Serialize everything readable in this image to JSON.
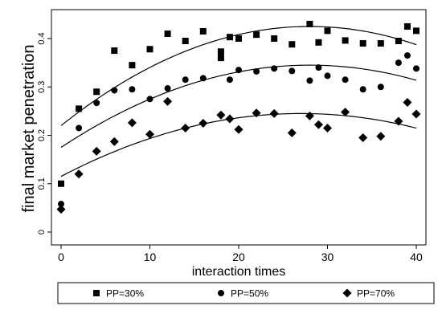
{
  "chart_data": {
    "type": "scatter",
    "xlabel": "interaction times",
    "ylabel": "final market penetration",
    "xlim": [
      0,
      40
    ],
    "ylim": [
      0,
      0.45
    ],
    "xticks": [
      0,
      10,
      20,
      30,
      40
    ],
    "yticks": [
      0,
      0.1,
      0.2,
      0.3,
      0.4
    ],
    "xtick_labels": [
      "0",
      "10",
      "20",
      "30",
      "40"
    ],
    "ytick_labels": [
      "0",
      "0.1",
      "0.2",
      "0.3",
      "0.4"
    ],
    "grid": false,
    "legend_position": "bottom",
    "series": [
      {
        "name": "PP=30%",
        "marker": "square",
        "x": [
          0,
          2,
          4,
          6,
          8,
          10,
          12,
          14,
          16,
          18,
          18,
          19,
          20,
          22,
          24,
          26,
          28,
          29,
          30,
          32,
          34,
          36,
          38,
          39,
          40
        ],
        "y": [
          0.1,
          0.255,
          0.29,
          0.375,
          0.345,
          0.378,
          0.41,
          0.395,
          0.415,
          0.373,
          0.36,
          0.403,
          0.4,
          0.408,
          0.4,
          0.388,
          0.43,
          0.392,
          0.416,
          0.396,
          0.39,
          0.39,
          0.395,
          0.425,
          0.416
        ],
        "fit": {
          "y0": 0.22,
          "ypeak": 0.425,
          "xpeak": 28,
          "yend": 0.382
        }
      },
      {
        "name": "PP=50%",
        "marker": "circle",
        "x": [
          0,
          2,
          4,
          6,
          8,
          10,
          12,
          14,
          16,
          18,
          19,
          20,
          22,
          24,
          26,
          28,
          29,
          30,
          32,
          34,
          36,
          38,
          39,
          40
        ],
        "y": [
          0.058,
          0.215,
          0.267,
          0.293,
          0.295,
          0.275,
          0.297,
          0.315,
          0.318,
          0.36,
          0.315,
          0.335,
          0.332,
          0.338,
          0.333,
          0.313,
          0.34,
          0.323,
          0.315,
          0.295,
          0.3,
          0.35,
          0.365,
          0.338
        ],
        "fit": {
          "y0": 0.175,
          "ypeak": 0.345,
          "xpeak": 28,
          "yend": 0.312
        }
      },
      {
        "name": "PP=70%",
        "marker": "diamond",
        "x": [
          0,
          2,
          4,
          6,
          8,
          10,
          12,
          14,
          16,
          18,
          19,
          20,
          22,
          24,
          26,
          28,
          29,
          30,
          32,
          34,
          36,
          38,
          39,
          40
        ],
        "y": [
          0.047,
          0.12,
          0.167,
          0.187,
          0.226,
          0.202,
          0.27,
          0.215,
          0.225,
          0.242,
          0.234,
          0.212,
          0.246,
          0.245,
          0.205,
          0.24,
          0.222,
          0.215,
          0.248,
          0.195,
          0.198,
          0.229,
          0.268,
          0.244
        ],
        "fit": {
          "y0": 0.115,
          "ypeak": 0.245,
          "xpeak": 27,
          "yend": 0.213
        }
      }
    ]
  }
}
